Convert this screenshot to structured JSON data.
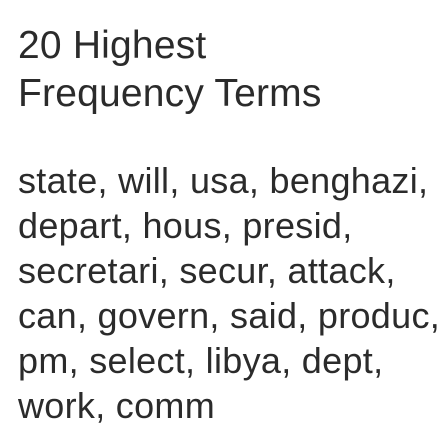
{
  "heading": {
    "line1": "20 Highest",
    "line2": "Frequency Terms"
  },
  "terms": {
    "lines": [
      "state, will, usa, benghazi,",
      "depart, hous, presid,",
      "secretari, secur, attack,",
      "can, govern, said, produc,",
      "pm, select, libya, dept,",
      "work, comm"
    ]
  },
  "colors": {
    "text": "#2b2b2b",
    "background": "#ffffff"
  }
}
